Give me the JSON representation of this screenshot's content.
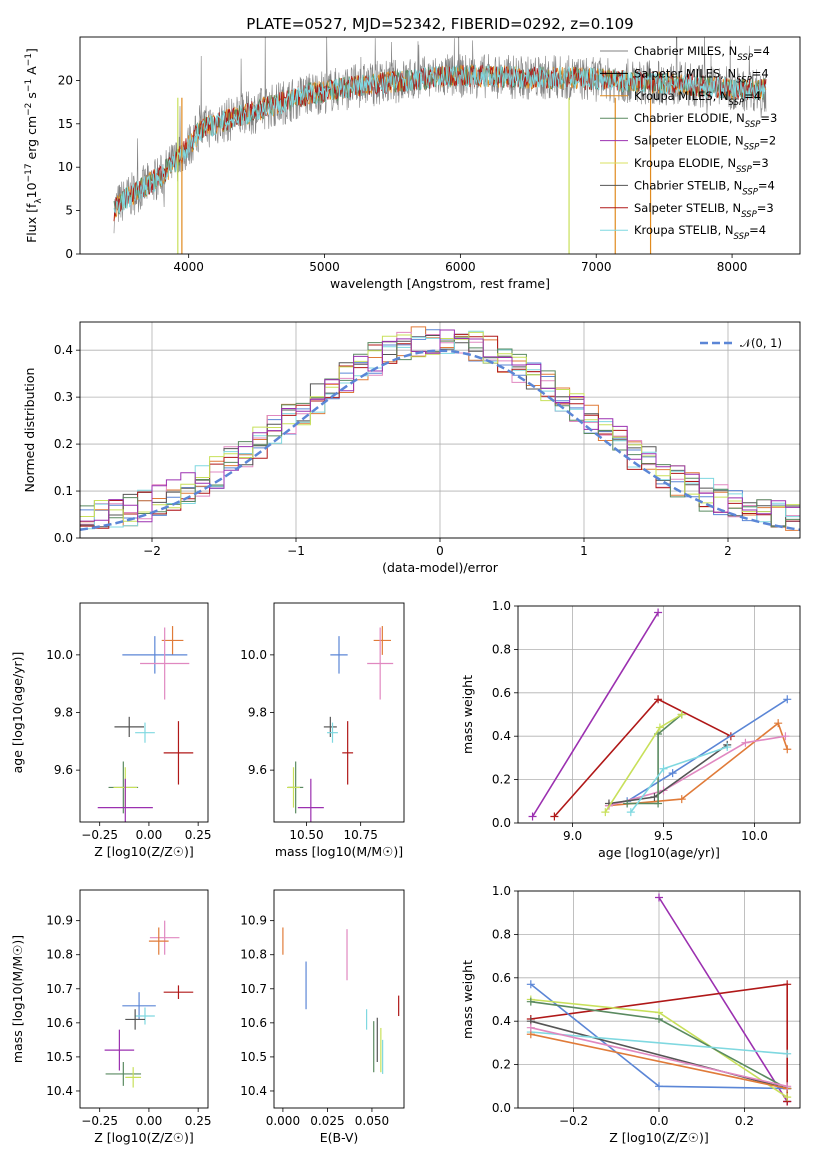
{
  "title": "PLATE=0527, MJD=52342, FIBERID=0292, z=0.109",
  "colors": {
    "chabrier_miles": "#4c72b0",
    "salpeter_miles": "#dd5a2a",
    "kroupa_miles": "#e08a1e",
    "chabrier_elodie": "#5a9a6a",
    "salpeter_elodie": "#9b30b0",
    "kroupa_elodie": "#c8e05a",
    "chabrier_stelib": "#555555",
    "salpeter_stelib": "#b01818",
    "kroupa_stelib": "#7fd8e0",
    "extra_blue": "#5b86d6",
    "extra_pink": "#e088c0"
  },
  "chart_data": [
    {
      "id": "spectrum",
      "type": "line",
      "xlabel": "wavelength [Angstrom, rest frame]",
      "ylabel": "Flux [f_λ10^-17 erg cm^-2 s^-1 A^-1]",
      "xlim": [
        3200,
        8500
      ],
      "ylim": [
        0,
        25
      ],
      "xticks": [
        "4000",
        "5000",
        "6000",
        "7000",
        "8000"
      ],
      "yticks": [
        "0",
        "5",
        "10",
        "15",
        "20"
      ],
      "x_anchor": [
        3450,
        3500,
        3600,
        3800,
        3950,
        4100,
        4300,
        4500,
        4700,
        4900,
        5100,
        5300,
        5600,
        5900,
        6200,
        6500,
        6800,
        7100,
        7400,
        7700,
        8000,
        8250
      ],
      "y_anchor": [
        5.0,
        6.0,
        7.0,
        9.0,
        11.5,
        14.5,
        15.5,
        16.5,
        17.5,
        18.5,
        19.0,
        19.5,
        20.0,
        20.5,
        20.5,
        20.3,
        20.3,
        20.0,
        19.8,
        19.5,
        19.0,
        19.0
      ],
      "legend": [
        {
          "label": "Chabrier MILES, N",
          "sub": "SSP",
          "val": "=4",
          "color": "#808080"
        },
        {
          "label": "Salpeter MILES, N",
          "sub": "SSP",
          "val": "=4",
          "color": "#000000"
        },
        {
          "label": "Kroupa MILES, N",
          "sub": "SSP",
          "val": "=4",
          "color": "#e08a1e"
        },
        {
          "label": "Chabrier ELODIE, N",
          "sub": "SSP",
          "val": "=3",
          "color": "#5a8a60"
        },
        {
          "label": "Salpeter ELODIE, N",
          "sub": "SSP",
          "val": "=2",
          "color": "#9b30b0"
        },
        {
          "label": "Kroupa ELODIE, N",
          "sub": "SSP",
          "val": "=3",
          "color": "#d8e060"
        },
        {
          "label": "Chabrier STELIB, N",
          "sub": "SSP",
          "val": "=4",
          "color": "#555555"
        },
        {
          "label": "Salpeter STELIB, N",
          "sub": "SSP",
          "val": "=3",
          "color": "#b01818"
        },
        {
          "label": "Kroupa STELIB, N",
          "sub": "SSP",
          "val": "=4",
          "color": "#7fd8e0"
        }
      ]
    },
    {
      "id": "residuals",
      "type": "line",
      "xlabel": "(data-model)/error",
      "ylabel": "Normed distribution",
      "xlim": [
        -2.5,
        2.5
      ],
      "ylim": [
        0,
        0.46
      ],
      "xticks": [
        "−2",
        "−1",
        "0",
        "1",
        "2"
      ],
      "yticks": [
        "0.0",
        "0.1",
        "0.2",
        "0.3",
        "0.4"
      ],
      "grid": true,
      "legend": "𝒩(0, 1)",
      "legend_color": "#5b86d6"
    },
    {
      "id": "age_vs_Z",
      "type": "scatter",
      "xlabel": "Z [log10(Z/Z☉)]",
      "ylabel": "age  [log10(age/yr)]",
      "xlim": [
        -0.35,
        0.3
      ],
      "ylim": [
        9.42,
        10.18
      ],
      "xticks": [
        "−0.25",
        "0.00",
        "0.25"
      ],
      "yticks": [
        "9.6",
        "9.8",
        "10.0"
      ],
      "points": [
        {
          "x": 0.12,
          "y": 10.05,
          "ex": 0.11,
          "ey": 0.1,
          "color": "#e07b39"
        },
        {
          "x": 0.03,
          "y": 10.0,
          "ex": 0.33,
          "ey": 0.13,
          "color": "#5b86d6"
        },
        {
          "x": 0.08,
          "y": 9.97,
          "ex": 0.25,
          "ey": 0.25,
          "color": "#e088c0"
        },
        {
          "x": -0.1,
          "y": 9.75,
          "ex": 0.15,
          "ey": 0.07,
          "color": "#555555"
        },
        {
          "x": -0.02,
          "y": 9.73,
          "ex": 0.1,
          "ey": 0.07,
          "color": "#7fd8e0"
        },
        {
          "x": 0.15,
          "y": 9.66,
          "ex": 0.15,
          "ey": 0.22,
          "color": "#b01818"
        },
        {
          "x": -0.13,
          "y": 9.54,
          "ex": 0.15,
          "ey": 0.18,
          "color": "#5a8a60"
        },
        {
          "x": -0.12,
          "y": 9.54,
          "ex": 0.12,
          "ey": 0.14,
          "color": "#c8e05a"
        },
        {
          "x": -0.12,
          "y": 9.47,
          "ex": 0.28,
          "ey": 0.2,
          "color": "#9b30b0"
        }
      ]
    },
    {
      "id": "age_vs_mass",
      "type": "scatter",
      "xlabel": "mass [log10(M/M☉)]",
      "ylabel": "",
      "xlim": [
        10.35,
        10.95
      ],
      "ylim": [
        9.42,
        10.18
      ],
      "xticks": [
        "10.50",
        "10.75"
      ],
      "yticks": [
        "9.6",
        "9.8",
        "10.0"
      ],
      "points": [
        {
          "x": 10.85,
          "y": 10.05,
          "ex": 0.08,
          "ey": 0.1,
          "color": "#e07b39"
        },
        {
          "x": 10.65,
          "y": 10.0,
          "ex": 0.08,
          "ey": 0.13,
          "color": "#5b86d6"
        },
        {
          "x": 10.84,
          "y": 9.97,
          "ex": 0.12,
          "ey": 0.25,
          "color": "#e088c0"
        },
        {
          "x": 10.61,
          "y": 9.75,
          "ex": 0.06,
          "ey": 0.07,
          "color": "#555555"
        },
        {
          "x": 10.62,
          "y": 9.73,
          "ex": 0.05,
          "ey": 0.07,
          "color": "#7fd8e0"
        },
        {
          "x": 10.69,
          "y": 9.66,
          "ex": 0.05,
          "ey": 0.22,
          "color": "#b01818"
        },
        {
          "x": 10.45,
          "y": 9.54,
          "ex": 0.07,
          "ey": 0.18,
          "color": "#5a8a60"
        },
        {
          "x": 10.44,
          "y": 9.54,
          "ex": 0.06,
          "ey": 0.14,
          "color": "#c8e05a"
        },
        {
          "x": 10.52,
          "y": 9.47,
          "ex": 0.12,
          "ey": 0.2,
          "color": "#9b30b0"
        }
      ]
    },
    {
      "id": "weight_vs_age",
      "type": "line",
      "xlabel": "age  [log10(age/yr)]",
      "ylabel": "mass weight",
      "xlim": [
        8.7,
        10.25
      ],
      "ylim": [
        0,
        1
      ],
      "xticks": [
        "9.0",
        "9.5",
        "10.0"
      ],
      "yticks": [
        "0.0",
        "0.2",
        "0.4",
        "0.6",
        "0.8",
        "1.0"
      ],
      "grid": true,
      "series": [
        {
          "color": "#9b30b0",
          "x": [
            8.78,
            9.47
          ],
          "y": [
            0.03,
            0.97
          ]
        },
        {
          "color": "#b01818",
          "x": [
            8.9,
            9.47,
            9.87
          ],
          "y": [
            0.03,
            0.57,
            0.4
          ]
        },
        {
          "color": "#5b86d6",
          "x": [
            9.3,
            9.55,
            10.18
          ],
          "y": [
            0.1,
            0.23,
            0.57
          ]
        },
        {
          "color": "#e07b39",
          "x": [
            9.2,
            9.6,
            10.13,
            10.18
          ],
          "y": [
            0.08,
            0.11,
            0.46,
            0.34
          ]
        },
        {
          "color": "#e088c0",
          "x": [
            9.2,
            9.5,
            9.95,
            10.17
          ],
          "y": [
            0.08,
            0.15,
            0.37,
            0.4
          ]
        },
        {
          "color": "#555555",
          "x": [
            9.2,
            9.45,
            9.85
          ],
          "y": [
            0.09,
            0.12,
            0.36
          ]
        },
        {
          "color": "#5a8a60",
          "x": [
            9.3,
            9.47,
            9.47,
            9.6
          ],
          "y": [
            0.09,
            0.09,
            0.41,
            0.5
          ]
        },
        {
          "color": "#c8e05a",
          "x": [
            9.18,
            9.48,
            9.6
          ],
          "y": [
            0.05,
            0.44,
            0.5
          ]
        },
        {
          "color": "#7fd8e0",
          "x": [
            9.32,
            9.5,
            9.85
          ],
          "y": [
            0.05,
            0.25,
            0.35
          ]
        }
      ]
    },
    {
      "id": "mass_vs_Z",
      "type": "scatter",
      "xlabel": "Z [log10(Z/Z☉)]",
      "ylabel": "mass [log10(M/M☉)]",
      "xlim": [
        -0.35,
        0.3
      ],
      "ylim": [
        10.35,
        10.99
      ],
      "xticks": [
        "−0.25",
        "0.00",
        "0.25"
      ],
      "yticks": [
        "10.4",
        "10.5",
        "10.6",
        "10.7",
        "10.8",
        "10.9"
      ],
      "points": [
        {
          "x": 0.08,
          "y": 10.85,
          "ex": 0.15,
          "ey": 0.1,
          "color": "#e088c0"
        },
        {
          "x": 0.05,
          "y": 10.84,
          "ex": 0.1,
          "ey": 0.08,
          "color": "#e07b39"
        },
        {
          "x": 0.15,
          "y": 10.69,
          "ex": 0.15,
          "ey": 0.04,
          "color": "#b01818"
        },
        {
          "x": -0.05,
          "y": 10.65,
          "ex": 0.17,
          "ey": 0.08,
          "color": "#5b86d6"
        },
        {
          "x": -0.02,
          "y": 10.62,
          "ex": 0.1,
          "ey": 0.05,
          "color": "#7fd8e0"
        },
        {
          "x": -0.07,
          "y": 10.61,
          "ex": 0.1,
          "ey": 0.06,
          "color": "#555555"
        },
        {
          "x": -0.15,
          "y": 10.52,
          "ex": 0.15,
          "ey": 0.12,
          "color": "#9b30b0"
        },
        {
          "x": -0.13,
          "y": 10.45,
          "ex": 0.18,
          "ey": 0.07,
          "color": "#5a8a60"
        },
        {
          "x": -0.08,
          "y": 10.44,
          "ex": 0.08,
          "ey": 0.06,
          "color": "#c8e05a"
        }
      ]
    },
    {
      "id": "mass_vs_ebv",
      "type": "scatter",
      "xlabel": "E(B-V)",
      "ylabel": "",
      "xlim": [
        -0.005,
        0.068
      ],
      "ylim": [
        10.35,
        10.99
      ],
      "xticks": [
        "0.000",
        "0.025",
        "0.050"
      ],
      "yticks": [
        "10.4",
        "10.5",
        "10.6",
        "10.7",
        "10.8",
        "10.9"
      ],
      "points": [
        {
          "x": 0.0,
          "y": 10.84,
          "ex": 0,
          "ey": 0.08,
          "color": "#e07b39"
        },
        {
          "x": 0.013,
          "y": 10.71,
          "ex": 0,
          "ey": 0.14,
          "color": "#5b86d6"
        },
        {
          "x": 0.036,
          "y": 10.8,
          "ex": 0,
          "ey": 0.15,
          "color": "#e088c0"
        },
        {
          "x": 0.047,
          "y": 10.61,
          "ex": 0,
          "ey": 0.06,
          "color": "#7fd8e0"
        },
        {
          "x": 0.051,
          "y": 10.53,
          "ex": 0,
          "ey": 0.15,
          "color": "#5a8a60"
        },
        {
          "x": 0.053,
          "y": 10.55,
          "ex": 0,
          "ey": 0.13,
          "color": "#555555"
        },
        {
          "x": 0.055,
          "y": 10.52,
          "ex": 0,
          "ey": 0.13,
          "color": "#c8e05a"
        },
        {
          "x": 0.056,
          "y": 10.5,
          "ex": 0,
          "ey": 0.1,
          "color": "#7fd8e0"
        },
        {
          "x": 0.065,
          "y": 10.65,
          "ex": 0,
          "ey": 0.06,
          "color": "#b01818"
        }
      ]
    },
    {
      "id": "weight_vs_Z",
      "type": "line",
      "xlabel": "Z [log10(Z/Z☉)]",
      "ylabel": "mass weight",
      "xlim": [
        -0.33,
        0.33
      ],
      "ylim": [
        0,
        1
      ],
      "xticks": [
        "−0.2",
        "0.0",
        "0.2"
      ],
      "yticks": [
        "0.0",
        "0.2",
        "0.4",
        "0.6",
        "0.8",
        "1.0"
      ],
      "grid": true,
      "series": [
        {
          "color": "#9b30b0",
          "x": [
            0.0,
            0.3,
            0.3
          ],
          "y": [
            0.97,
            0.03,
            0.03
          ]
        },
        {
          "color": "#b01818",
          "x": [
            -0.3,
            0.3,
            0.3
          ],
          "y": [
            0.41,
            0.57,
            0.03
          ]
        },
        {
          "color": "#5b86d6",
          "x": [
            -0.3,
            0.0,
            0.3
          ],
          "y": [
            0.57,
            0.1,
            0.09
          ]
        },
        {
          "color": "#c8e05a",
          "x": [
            -0.3,
            0.0,
            0.3
          ],
          "y": [
            0.5,
            0.44,
            0.05
          ]
        },
        {
          "color": "#5a8a60",
          "x": [
            -0.3,
            0.0,
            0.3
          ],
          "y": [
            0.49,
            0.41,
            0.09
          ]
        },
        {
          "color": "#555555",
          "x": [
            -0.3,
            0.3
          ],
          "y": [
            0.4,
            0.09
          ]
        },
        {
          "color": "#7fd8e0",
          "x": [
            -0.3,
            0.3
          ],
          "y": [
            0.35,
            0.25
          ]
        },
        {
          "color": "#e07b39",
          "x": [
            -0.3,
            0.3
          ],
          "y": [
            0.34,
            0.09
          ]
        },
        {
          "color": "#e088c0",
          "x": [
            -0.3,
            0.3
          ],
          "y": [
            0.37,
            0.1
          ]
        }
      ]
    }
  ]
}
